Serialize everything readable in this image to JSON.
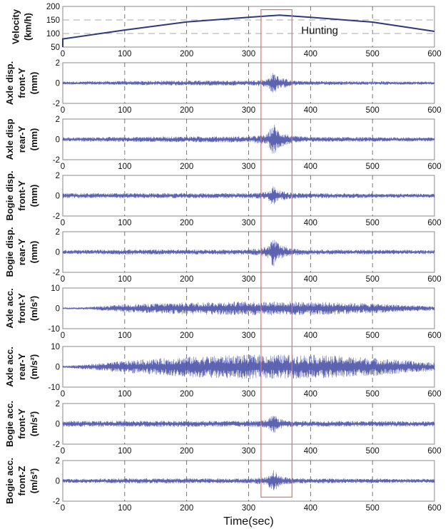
{
  "chart_data": [
    {
      "type": "line",
      "ylabel": [
        "Velocity",
        "(km/h)"
      ],
      "ylim": [
        50,
        200
      ],
      "yticks": [
        50,
        100,
        150,
        200
      ],
      "xlim": [
        0,
        600
      ],
      "xticks": [
        0,
        100,
        200,
        300,
        400,
        500,
        600
      ],
      "grid": "dashed",
      "hgrid": [
        100,
        150
      ],
      "x": [
        0,
        0,
        100,
        200,
        300,
        350,
        400,
        500,
        600
      ],
      "y": [
        50,
        80,
        113,
        143,
        160,
        168,
        160,
        142,
        108
      ],
      "color": "#2b3a7e"
    },
    {
      "type": "line",
      "ylabel": [
        "Axle disp.",
        "front-Y",
        "(mm)"
      ],
      "ylim": [
        -2,
        2
      ],
      "yticks": [
        -2,
        0,
        2
      ],
      "xlim": [
        0,
        600
      ],
      "xticks": [
        0,
        100,
        200,
        300,
        400,
        500,
        600
      ],
      "grid": "dashed",
      "amplitude_envelope": {
        "t": [
          0,
          100,
          200,
          300,
          330,
          340,
          350,
          370,
          400,
          600
        ],
        "a": [
          0.15,
          0.2,
          0.25,
          0.25,
          0.4,
          1.1,
          0.6,
          0.25,
          0.2,
          0.15
        ]
      },
      "color": "#4a52a8"
    },
    {
      "type": "line",
      "ylabel": [
        "Axle disp",
        "rear-Y",
        "(mm)"
      ],
      "ylim": [
        -2,
        2
      ],
      "yticks": [
        -2,
        0,
        2
      ],
      "xlim": [
        0,
        600
      ],
      "xticks": [
        0,
        100,
        200,
        300,
        400,
        500,
        600
      ],
      "grid": "dashed",
      "amplitude_envelope": {
        "t": [
          0,
          100,
          200,
          300,
          330,
          340,
          350,
          370,
          400,
          600
        ],
        "a": [
          0.2,
          0.25,
          0.3,
          0.3,
          0.5,
          1.6,
          0.8,
          0.35,
          0.25,
          0.2
        ]
      },
      "color": "#4a52a8"
    },
    {
      "type": "line",
      "ylabel": [
        "Bogie disp.",
        "front-Y",
        "(mm)"
      ],
      "ylim": [
        -2,
        2
      ],
      "yticks": [
        -2,
        0,
        2
      ],
      "xlim": [
        0,
        600
      ],
      "xticks": [
        0,
        100,
        200,
        300,
        400,
        500,
        600
      ],
      "grid": "dashed",
      "amplitude_envelope": {
        "t": [
          0,
          100,
          200,
          300,
          330,
          340,
          350,
          370,
          400,
          600
        ],
        "a": [
          0.25,
          0.25,
          0.25,
          0.25,
          0.4,
          1.0,
          0.5,
          0.3,
          0.25,
          0.2
        ]
      },
      "color": "#4a52a8"
    },
    {
      "type": "line",
      "ylabel": [
        "Bogie disp.",
        "rear-Y",
        "(mm)"
      ],
      "ylim": [
        -2,
        2
      ],
      "yticks": [
        -2,
        0,
        2
      ],
      "xlim": [
        0,
        600
      ],
      "xticks": [
        0,
        100,
        200,
        300,
        400,
        500,
        600
      ],
      "grid": "dashed",
      "amplitude_envelope": {
        "t": [
          0,
          100,
          200,
          300,
          330,
          340,
          350,
          370,
          400,
          600
        ],
        "a": [
          0.2,
          0.25,
          0.25,
          0.25,
          0.5,
          1.5,
          0.7,
          0.35,
          0.25,
          0.2
        ]
      },
      "color": "#4a52a8"
    },
    {
      "type": "line",
      "ylabel": [
        "Axle acc.",
        "front-Y",
        "(m/s²)"
      ],
      "ylim": [
        -10,
        10
      ],
      "yticks": [
        -10,
        0,
        10
      ],
      "xlim": [
        0,
        600
      ],
      "xticks": [
        0,
        100,
        200,
        300,
        400,
        500,
        600
      ],
      "grid": "dashed",
      "amplitude_envelope": {
        "t": [
          0,
          50,
          100,
          200,
          300,
          400,
          500,
          600
        ],
        "a": [
          0.3,
          0.8,
          2,
          3,
          3.5,
          3.3,
          2.5,
          1
        ]
      },
      "color": "#4a52a8"
    },
    {
      "type": "line",
      "ylabel": [
        "Axle acc.",
        "rear-Y",
        "(m/s²)"
      ],
      "ylim": [
        -10,
        10
      ],
      "yticks": [
        -10,
        0,
        10
      ],
      "xlim": [
        0,
        600
      ],
      "xticks": [
        0,
        100,
        200,
        300,
        400,
        500,
        600
      ],
      "grid": "dashed",
      "amplitude_envelope": {
        "t": [
          0,
          50,
          100,
          200,
          300,
          400,
          500,
          600
        ],
        "a": [
          0.5,
          1.5,
          3,
          5,
          6,
          6,
          4.5,
          2
        ]
      },
      "color": "#4a52a8"
    },
    {
      "type": "line",
      "ylabel": [
        "Bogie acc.",
        "front-Y",
        "(m/s²)"
      ],
      "ylim": [
        -2,
        2
      ],
      "yticks": [
        -2,
        0,
        2
      ],
      "xlim": [
        0,
        600
      ],
      "xticks": [
        0,
        100,
        200,
        300,
        400,
        500,
        600
      ],
      "grid": "dashed",
      "amplitude_envelope": {
        "t": [
          0,
          100,
          200,
          300,
          330,
          340,
          350,
          370,
          400,
          600
        ],
        "a": [
          0.3,
          0.3,
          0.3,
          0.3,
          0.4,
          1.0,
          0.5,
          0.3,
          0.3,
          0.25
        ]
      },
      "color": "#4a52a8"
    },
    {
      "type": "line",
      "ylabel": [
        "Bogie acc.",
        "front-Z",
        "(m/s²)"
      ],
      "ylim": [
        -2,
        2
      ],
      "yticks": [
        -2,
        0,
        2
      ],
      "xlim": [
        0,
        600
      ],
      "xticks": [
        0,
        100,
        200,
        300,
        400,
        500,
        600
      ],
      "grid": "dashed",
      "amplitude_envelope": {
        "t": [
          0,
          100,
          200,
          300,
          330,
          340,
          350,
          370,
          400,
          600
        ],
        "a": [
          0.2,
          0.25,
          0.25,
          0.25,
          0.4,
          1.2,
          0.5,
          0.3,
          0.25,
          0.2
        ]
      },
      "color": "#4a52a8",
      "xlabel": "Time(sec)"
    }
  ],
  "annotation": {
    "text": "Hunting",
    "x": 385,
    "y": 112,
    "box_x": [
      320,
      370
    ],
    "box_color": "#e07070"
  }
}
